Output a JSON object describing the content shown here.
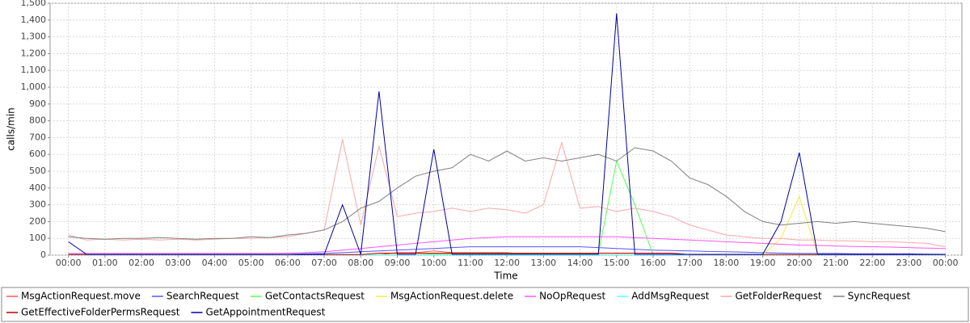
{
  "chart_data": {
    "type": "line",
    "x_label": "Time",
    "y_label": "calls/min",
    "xlim": [
      -30,
      1467
    ],
    "ylim": [
      0,
      1500
    ],
    "xticks": [
      {
        "value": 0,
        "label": "00:00"
      },
      {
        "value": 60,
        "label": "01:00"
      },
      {
        "value": 120,
        "label": "02:00"
      },
      {
        "value": 180,
        "label": "03:00"
      },
      {
        "value": 240,
        "label": "04:00"
      },
      {
        "value": 300,
        "label": "05:00"
      },
      {
        "value": 360,
        "label": "06:00"
      },
      {
        "value": 420,
        "label": "07:00"
      },
      {
        "value": 480,
        "label": "08:00"
      },
      {
        "value": 540,
        "label": "09:00"
      },
      {
        "value": 600,
        "label": "10:00"
      },
      {
        "value": 660,
        "label": "11:00"
      },
      {
        "value": 720,
        "label": "12:00"
      },
      {
        "value": 780,
        "label": "13:00"
      },
      {
        "value": 840,
        "label": "14:00"
      },
      {
        "value": 900,
        "label": "15:00"
      },
      {
        "value": 960,
        "label": "16:00"
      },
      {
        "value": 1020,
        "label": "17:00"
      },
      {
        "value": 1080,
        "label": "18:00"
      },
      {
        "value": 1140,
        "label": "19:00"
      },
      {
        "value": 1200,
        "label": "20:00"
      },
      {
        "value": 1260,
        "label": "21:00"
      },
      {
        "value": 1320,
        "label": "22:00"
      },
      {
        "value": 1380,
        "label": "23:00"
      },
      {
        "value": 1440,
        "label": "00:00"
      }
    ],
    "yticks": [
      0,
      100,
      200,
      300,
      400,
      500,
      600,
      700,
      800,
      900,
      {
        "value": 1000,
        "label": "1,000"
      },
      {
        "value": 1100,
        "label": "1,100"
      },
      {
        "value": 1200,
        "label": "1,200"
      },
      {
        "value": 1300,
        "label": "1,300"
      },
      {
        "value": 1400,
        "label": "1,400"
      },
      {
        "value": 1500,
        "label": "1,500"
      }
    ],
    "grid": true,
    "x": [
      0,
      30,
      60,
      90,
      120,
      150,
      180,
      210,
      240,
      270,
      300,
      330,
      360,
      390,
      420,
      450,
      480,
      510,
      540,
      570,
      600,
      630,
      660,
      690,
      720,
      750,
      780,
      810,
      840,
      870,
      900,
      930,
      960,
      990,
      1020,
      1050,
      1080,
      1110,
      1140,
      1170,
      1200,
      1230,
      1260,
      1290,
      1320,
      1350,
      1380,
      1410,
      1440
    ],
    "series": [
      {
        "name": "MsgActionRequest.move",
        "color": "#ff5555",
        "values": [
          3,
          3,
          3,
          3,
          3,
          3,
          3,
          3,
          3,
          3,
          3,
          3,
          3,
          3,
          3,
          3,
          3,
          3,
          15,
          15,
          25,
          15,
          15,
          15,
          15,
          3,
          3,
          3,
          3,
          3,
          3,
          3,
          3,
          3,
          3,
          3,
          3,
          3,
          3,
          3,
          3,
          3,
          3,
          3,
          3,
          3,
          3,
          3,
          3
        ]
      },
      {
        "name": "SearchRequest",
        "color": "#5555ff",
        "values": [
          5,
          5,
          5,
          5,
          5,
          5,
          5,
          5,
          5,
          5,
          5,
          5,
          5,
          8,
          10,
          15,
          20,
          25,
          30,
          35,
          40,
          45,
          50,
          50,
          50,
          50,
          50,
          50,
          50,
          45,
          40,
          35,
          30,
          28,
          25,
          22,
          20,
          18,
          15,
          12,
          10,
          10,
          10,
          8,
          8,
          8,
          8,
          6,
          5
        ]
      },
      {
        "name": "GetContactsRequest",
        "color": "#55ff55",
        "values": [
          3,
          3,
          3,
          3,
          3,
          3,
          3,
          3,
          3,
          3,
          3,
          3,
          3,
          3,
          3,
          3,
          3,
          3,
          3,
          3,
          8,
          8,
          8,
          8,
          8,
          8,
          8,
          8,
          8,
          8,
          560,
          300,
          3,
          3,
          3,
          3,
          3,
          3,
          3,
          3,
          3,
          3,
          3,
          3,
          3,
          3,
          3,
          3,
          3
        ]
      },
      {
        "name": "MsgActionRequest.delete",
        "color": "#eeee44",
        "values": [
          3,
          3,
          3,
          3,
          3,
          3,
          3,
          3,
          3,
          3,
          3,
          3,
          3,
          3,
          3,
          3,
          3,
          3,
          3,
          3,
          3,
          3,
          3,
          3,
          3,
          3,
          3,
          3,
          3,
          3,
          3,
          3,
          3,
          3,
          3,
          3,
          3,
          3,
          3,
          100,
          350,
          3,
          3,
          3,
          3,
          3,
          3,
          3,
          3
        ]
      },
      {
        "name": "NoOpRequest",
        "color": "#ff55ff",
        "values": [
          10,
          10,
          10,
          10,
          10,
          10,
          10,
          10,
          10,
          10,
          10,
          10,
          12,
          15,
          20,
          30,
          40,
          50,
          60,
          70,
          80,
          90,
          100,
          105,
          110,
          110,
          110,
          110,
          110,
          110,
          110,
          105,
          100,
          95,
          90,
          85,
          80,
          75,
          70,
          65,
          60,
          58,
          55,
          52,
          50,
          48,
          45,
          42,
          40
        ]
      },
      {
        "name": "AddMsgRequest",
        "color": "#55ffff",
        "values": [
          2,
          2,
          2,
          2,
          2,
          2,
          2,
          2,
          2,
          2,
          2,
          2,
          2,
          2,
          2,
          2,
          2,
          2,
          2,
          2,
          2,
          2,
          2,
          2,
          2,
          2,
          2,
          2,
          2,
          2,
          2,
          2,
          2,
          2,
          2,
          2,
          2,
          2,
          2,
          2,
          2,
          2,
          2,
          2,
          2,
          2,
          2,
          2,
          2
        ]
      },
      {
        "name": "GetFolderRequest",
        "color": "#f7a8a8",
        "values": [
          120,
          90,
          95,
          90,
          95,
          90,
          95,
          90,
          95,
          100,
          100,
          105,
          110,
          130,
          150,
          690,
          180,
          650,
          230,
          250,
          260,
          280,
          260,
          280,
          270,
          250,
          300,
          670,
          280,
          290,
          260,
          280,
          260,
          230,
          180,
          150,
          120,
          110,
          100,
          100,
          90,
          90,
          85,
          85,
          80,
          80,
          75,
          70,
          50
        ]
      },
      {
        "name": "SyncRequest",
        "color": "#808080",
        "values": [
          110,
          100,
          95,
          100,
          100,
          105,
          100,
          95,
          100,
          100,
          110,
          105,
          120,
          130,
          150,
          200,
          280,
          320,
          400,
          470,
          500,
          520,
          600,
          560,
          620,
          560,
          580,
          560,
          580,
          600,
          560,
          640,
          620,
          560,
          460,
          420,
          350,
          260,
          200,
          180,
          190,
          200,
          190,
          200,
          190,
          180,
          170,
          160,
          140
        ]
      },
      {
        "name": "GetEffectiveFolderPermsRequest",
        "color": "#c00000",
        "values": [
          4,
          4,
          4,
          4,
          4,
          4,
          4,
          4,
          4,
          4,
          4,
          4,
          4,
          4,
          4,
          4,
          4,
          12,
          12,
          12,
          12,
          12,
          12,
          12,
          12,
          12,
          12,
          12,
          12,
          12,
          12,
          12,
          12,
          12,
          4,
          4,
          4,
          4,
          4,
          4,
          4,
          4,
          4,
          4,
          4,
          4,
          4,
          4,
          4
        ]
      },
      {
        "name": "GetAppointmentRequest",
        "color": "#0000a0",
        "values": [
          80,
          5,
          5,
          5,
          5,
          5,
          5,
          5,
          5,
          5,
          5,
          5,
          5,
          5,
          5,
          300,
          5,
          975,
          5,
          5,
          630,
          5,
          5,
          5,
          5,
          5,
          5,
          5,
          5,
          5,
          1440,
          5,
          5,
          5,
          5,
          5,
          5,
          5,
          5,
          200,
          610,
          5,
          5,
          5,
          5,
          5,
          5,
          5,
          5
        ]
      }
    ]
  }
}
